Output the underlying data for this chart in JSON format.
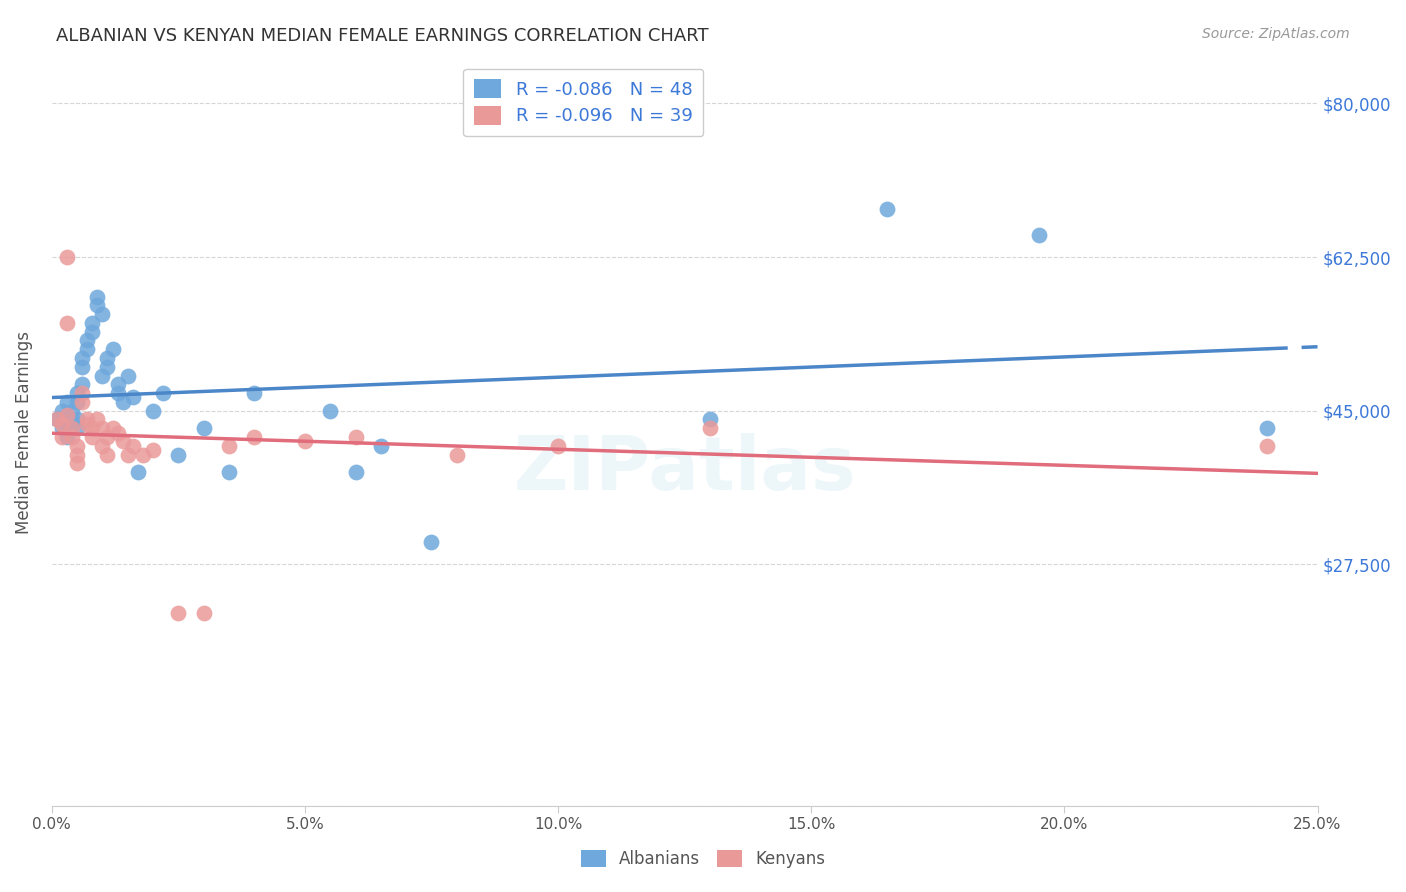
{
  "title": "ALBANIAN VS KENYAN MEDIAN FEMALE EARNINGS CORRELATION CHART",
  "source": "Source: ZipAtlas.com",
  "ylabel": "Median Female Earnings",
  "legend_albanians": "R = -0.086   N = 48",
  "legend_kenyans": "R = -0.096   N = 39",
  "legend_label1": "Albanians",
  "legend_label2": "Kenyans",
  "color_blue": "#6fa8dc",
  "color_pink": "#ea9999",
  "color_line_blue": "#4a86c8",
  "color_line_pink": "#e06c7c",
  "color_legend_text": "#3c78d8",
  "color_title": "#333333",
  "color_source": "#999999",
  "color_ytick": "#3c78d8",
  "background_color": "#ffffff",
  "grid_color": "#cccccc",
  "albanians_x": [
    0.001,
    0.002,
    0.002,
    0.003,
    0.003,
    0.003,
    0.003,
    0.004,
    0.004,
    0.004,
    0.005,
    0.005,
    0.005,
    0.005,
    0.006,
    0.006,
    0.006,
    0.007,
    0.007,
    0.008,
    0.008,
    0.009,
    0.009,
    0.01,
    0.01,
    0.011,
    0.011,
    0.012,
    0.013,
    0.013,
    0.014,
    0.015,
    0.016,
    0.017,
    0.02,
    0.022,
    0.025,
    0.03,
    0.035,
    0.04,
    0.055,
    0.06,
    0.065,
    0.075,
    0.13,
    0.165,
    0.195,
    0.24
  ],
  "albanians_y": [
    44000,
    43000,
    45000,
    46000,
    44500,
    43000,
    42000,
    45000,
    44000,
    43500,
    46000,
    47000,
    44000,
    43000,
    50000,
    51000,
    48000,
    52000,
    53000,
    55000,
    54000,
    58000,
    57000,
    56000,
    49000,
    51000,
    50000,
    52000,
    48000,
    47000,
    46000,
    49000,
    46500,
    38000,
    45000,
    47000,
    40000,
    43000,
    38000,
    47000,
    45000,
    38000,
    41000,
    30000,
    44000,
    68000,
    65000,
    43000
  ],
  "kenyans_x": [
    0.001,
    0.002,
    0.002,
    0.003,
    0.003,
    0.003,
    0.004,
    0.004,
    0.005,
    0.005,
    0.005,
    0.006,
    0.006,
    0.007,
    0.007,
    0.008,
    0.008,
    0.009,
    0.01,
    0.01,
    0.011,
    0.011,
    0.012,
    0.013,
    0.014,
    0.015,
    0.016,
    0.018,
    0.02,
    0.025,
    0.03,
    0.035,
    0.04,
    0.05,
    0.06,
    0.08,
    0.1,
    0.13,
    0.24
  ],
  "kenyans_y": [
    44000,
    43500,
    42000,
    62500,
    55000,
    44500,
    43000,
    42000,
    41000,
    40000,
    39000,
    47000,
    46000,
    44000,
    43500,
    43000,
    42000,
    44000,
    43000,
    41000,
    40000,
    42000,
    43000,
    42500,
    41500,
    40000,
    41000,
    40000,
    40500,
    22000,
    22000,
    41000,
    42000,
    41500,
    42000,
    40000,
    41000,
    43000,
    41000
  ],
  "xmin": 0,
  "xmax": 0.25,
  "ymin": 0,
  "ymax": 85000
}
